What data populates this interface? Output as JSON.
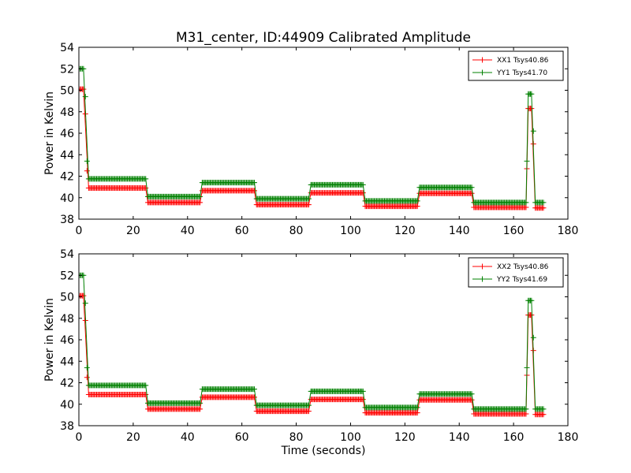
{
  "figure": {
    "title": "M31_center, ID:44909 Calibrated Amplitude",
    "background": "#ffffff"
  },
  "chart_data": [
    {
      "type": "line",
      "title": "M31_center, ID:44909 Calibrated Amplitude",
      "xlabel": "",
      "ylabel": "Power in Kelvin",
      "xlim": [
        0,
        180
      ],
      "ylim": [
        38,
        54
      ],
      "xticks": [
        0,
        20,
        40,
        60,
        80,
        100,
        120,
        140,
        160,
        180
      ],
      "yticks": [
        38,
        40,
        42,
        44,
        46,
        48,
        50,
        52,
        54
      ],
      "grid": false,
      "legend_position": "top-right",
      "marker": "+",
      "series": [
        {
          "name": "XX1 Tsys40.86",
          "color": "#ff0000",
          "segments": [
            [
              0.0,
              1.7,
              50.1
            ],
            [
              3.6,
              24.6,
              40.9
            ],
            [
              25.4,
              44.6,
              39.55
            ],
            [
              45.4,
              64.6,
              40.65
            ],
            [
              65.4,
              84.6,
              39.35
            ],
            [
              85.4,
              104.6,
              40.45
            ],
            [
              105.4,
              124.6,
              39.2
            ],
            [
              125.4,
              144.6,
              40.4
            ],
            [
              145.4,
              164.6,
              39.1
            ],
            [
              165.4,
              166.6,
              48.3
            ],
            [
              168.0,
              171.0,
              39.05
            ]
          ],
          "extra_points": [
            [
              2.4,
              47.8
            ],
            [
              3.0,
              42.5
            ],
            [
              164.9,
              42.7
            ],
            [
              167.3,
              45.0
            ]
          ]
        },
        {
          "name": "YY1 Tsys41.70",
          "color": "#008000",
          "segments": [
            [
              0.0,
              1.7,
              52.0
            ],
            [
              3.6,
              24.6,
              41.75
            ],
            [
              25.4,
              44.6,
              40.1
            ],
            [
              45.4,
              64.6,
              41.4
            ],
            [
              65.4,
              84.6,
              39.9
            ],
            [
              85.4,
              104.6,
              41.2
            ],
            [
              105.4,
              124.6,
              39.7
            ],
            [
              125.4,
              144.6,
              40.95
            ],
            [
              145.4,
              164.6,
              39.55
            ],
            [
              165.4,
              166.6,
              49.65
            ],
            [
              168.0,
              171.0,
              39.55
            ]
          ],
          "extra_points": [
            [
              2.4,
              49.4
            ],
            [
              3.0,
              43.4
            ],
            [
              164.9,
              43.4
            ],
            [
              167.3,
              46.2
            ]
          ]
        }
      ]
    },
    {
      "type": "line",
      "title": "",
      "xlabel": "Time (seconds)",
      "ylabel": "Power in Kelvin",
      "xlim": [
        0,
        180
      ],
      "ylim": [
        38,
        54
      ],
      "xticks": [
        0,
        20,
        40,
        60,
        80,
        100,
        120,
        140,
        160,
        180
      ],
      "yticks": [
        38,
        40,
        42,
        44,
        46,
        48,
        50,
        52,
        54
      ],
      "grid": false,
      "legend_position": "top-right",
      "marker": "+",
      "series": [
        {
          "name": "XX2 Tsys40.86",
          "color": "#ff0000",
          "segments": [
            [
              0.0,
              1.7,
              50.1
            ],
            [
              3.6,
              24.6,
              40.9
            ],
            [
              25.4,
              44.6,
              39.55
            ],
            [
              45.4,
              64.6,
              40.65
            ],
            [
              65.4,
              84.6,
              39.35
            ],
            [
              85.4,
              104.6,
              40.45
            ],
            [
              105.4,
              124.6,
              39.2
            ],
            [
              125.4,
              144.6,
              40.4
            ],
            [
              145.4,
              164.6,
              39.1
            ],
            [
              165.4,
              166.6,
              48.3
            ],
            [
              168.0,
              171.0,
              39.05
            ]
          ],
          "extra_points": [
            [
              2.4,
              47.8
            ],
            [
              3.0,
              42.5
            ],
            [
              164.9,
              42.7
            ],
            [
              167.3,
              45.0
            ]
          ]
        },
        {
          "name": "YY2 Tsys41.69",
          "color": "#008000",
          "segments": [
            [
              0.0,
              1.7,
              52.0
            ],
            [
              3.6,
              24.6,
              41.75
            ],
            [
              25.4,
              44.6,
              40.1
            ],
            [
              45.4,
              64.6,
              41.4
            ],
            [
              65.4,
              84.6,
              39.9
            ],
            [
              85.4,
              104.6,
              41.2
            ],
            [
              105.4,
              124.6,
              39.7
            ],
            [
              125.4,
              144.6,
              40.95
            ],
            [
              145.4,
              164.6,
              39.55
            ],
            [
              165.4,
              166.6,
              49.65
            ],
            [
              168.0,
              171.0,
              39.55
            ]
          ],
          "extra_points": [
            [
              2.4,
              49.4
            ],
            [
              3.0,
              43.4
            ],
            [
              164.9,
              43.4
            ],
            [
              167.3,
              46.2
            ]
          ]
        }
      ]
    }
  ]
}
